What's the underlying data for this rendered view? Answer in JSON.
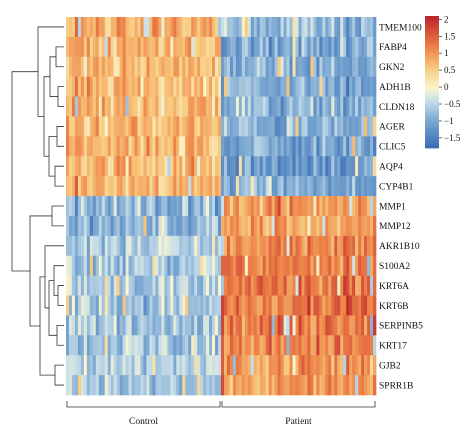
{
  "chart_data": {
    "type": "heatmap",
    "title": "",
    "xlabel": "",
    "ylabel": "",
    "rows": [
      "TMEM100",
      "FABP4",
      "GKN2",
      "ADH1B",
      "CLDN18",
      "AGER",
      "CLIC5",
      "AQP4",
      "CYP4B1",
      "MMP1",
      "MMP12",
      "AKR1B10",
      "S100A2",
      "KRT6A",
      "KRT6B",
      "SERPINB5",
      "KRT17",
      "GJB2",
      "SPRR1B"
    ],
    "column_groups": [
      {
        "name": "Control",
        "n_samples": 52
      },
      {
        "name": "Patient",
        "n_samples": 52
      }
    ],
    "values_description": "Approximate mean scaled expression per gene per group, read from cell colors",
    "group_mean_values": {
      "Control": [
        0.8,
        0.7,
        0.7,
        0.7,
        0.7,
        0.7,
        0.7,
        0.7,
        0.7,
        -0.8,
        -0.8,
        -0.5,
        -0.6,
        -0.6,
        -0.6,
        -0.6,
        -0.6,
        -0.5,
        -0.6
      ],
      "Patient": [
        -0.7,
        -0.9,
        -0.9,
        -0.9,
        -0.9,
        -0.9,
        -1.0,
        -1.2,
        -0.9,
        1.0,
        0.9,
        1.2,
        1.3,
        1.3,
        1.3,
        1.3,
        1.2,
        1.0,
        1.0
      ]
    },
    "color_scale": {
      "ticks": [
        "2",
        "1.5",
        "1",
        "0.5",
        "0",
        "−0.5",
        "−1",
        "−1.5"
      ],
      "tick_values": [
        2,
        1.5,
        1,
        0.5,
        0,
        -0.5,
        -1,
        -1.5
      ],
      "range": [
        -1.8,
        2.1
      ],
      "colors": {
        "low": "#3a6fb6",
        "mid_low": "#c3dbe8",
        "mid": "#fbf6c8",
        "mid_high": "#f8b36a",
        "high": "#c0272d"
      }
    },
    "row_clusters": [
      {
        "rows": [
          "TMEM100",
          "FABP4",
          "GKN2",
          "ADH1B",
          "CLDN18",
          "AGER",
          "CLIC5",
          "AQP4",
          "CYP4B1"
        ]
      },
      {
        "rows": [
          "MMP1",
          "MMP12",
          "AKR1B10",
          "S100A2",
          "KRT6A",
          "KRT6B",
          "SERPINB5",
          "KRT17",
          "GJB2",
          "SPRR1B"
        ]
      }
    ],
    "grid": false,
    "legend": "top-right"
  }
}
